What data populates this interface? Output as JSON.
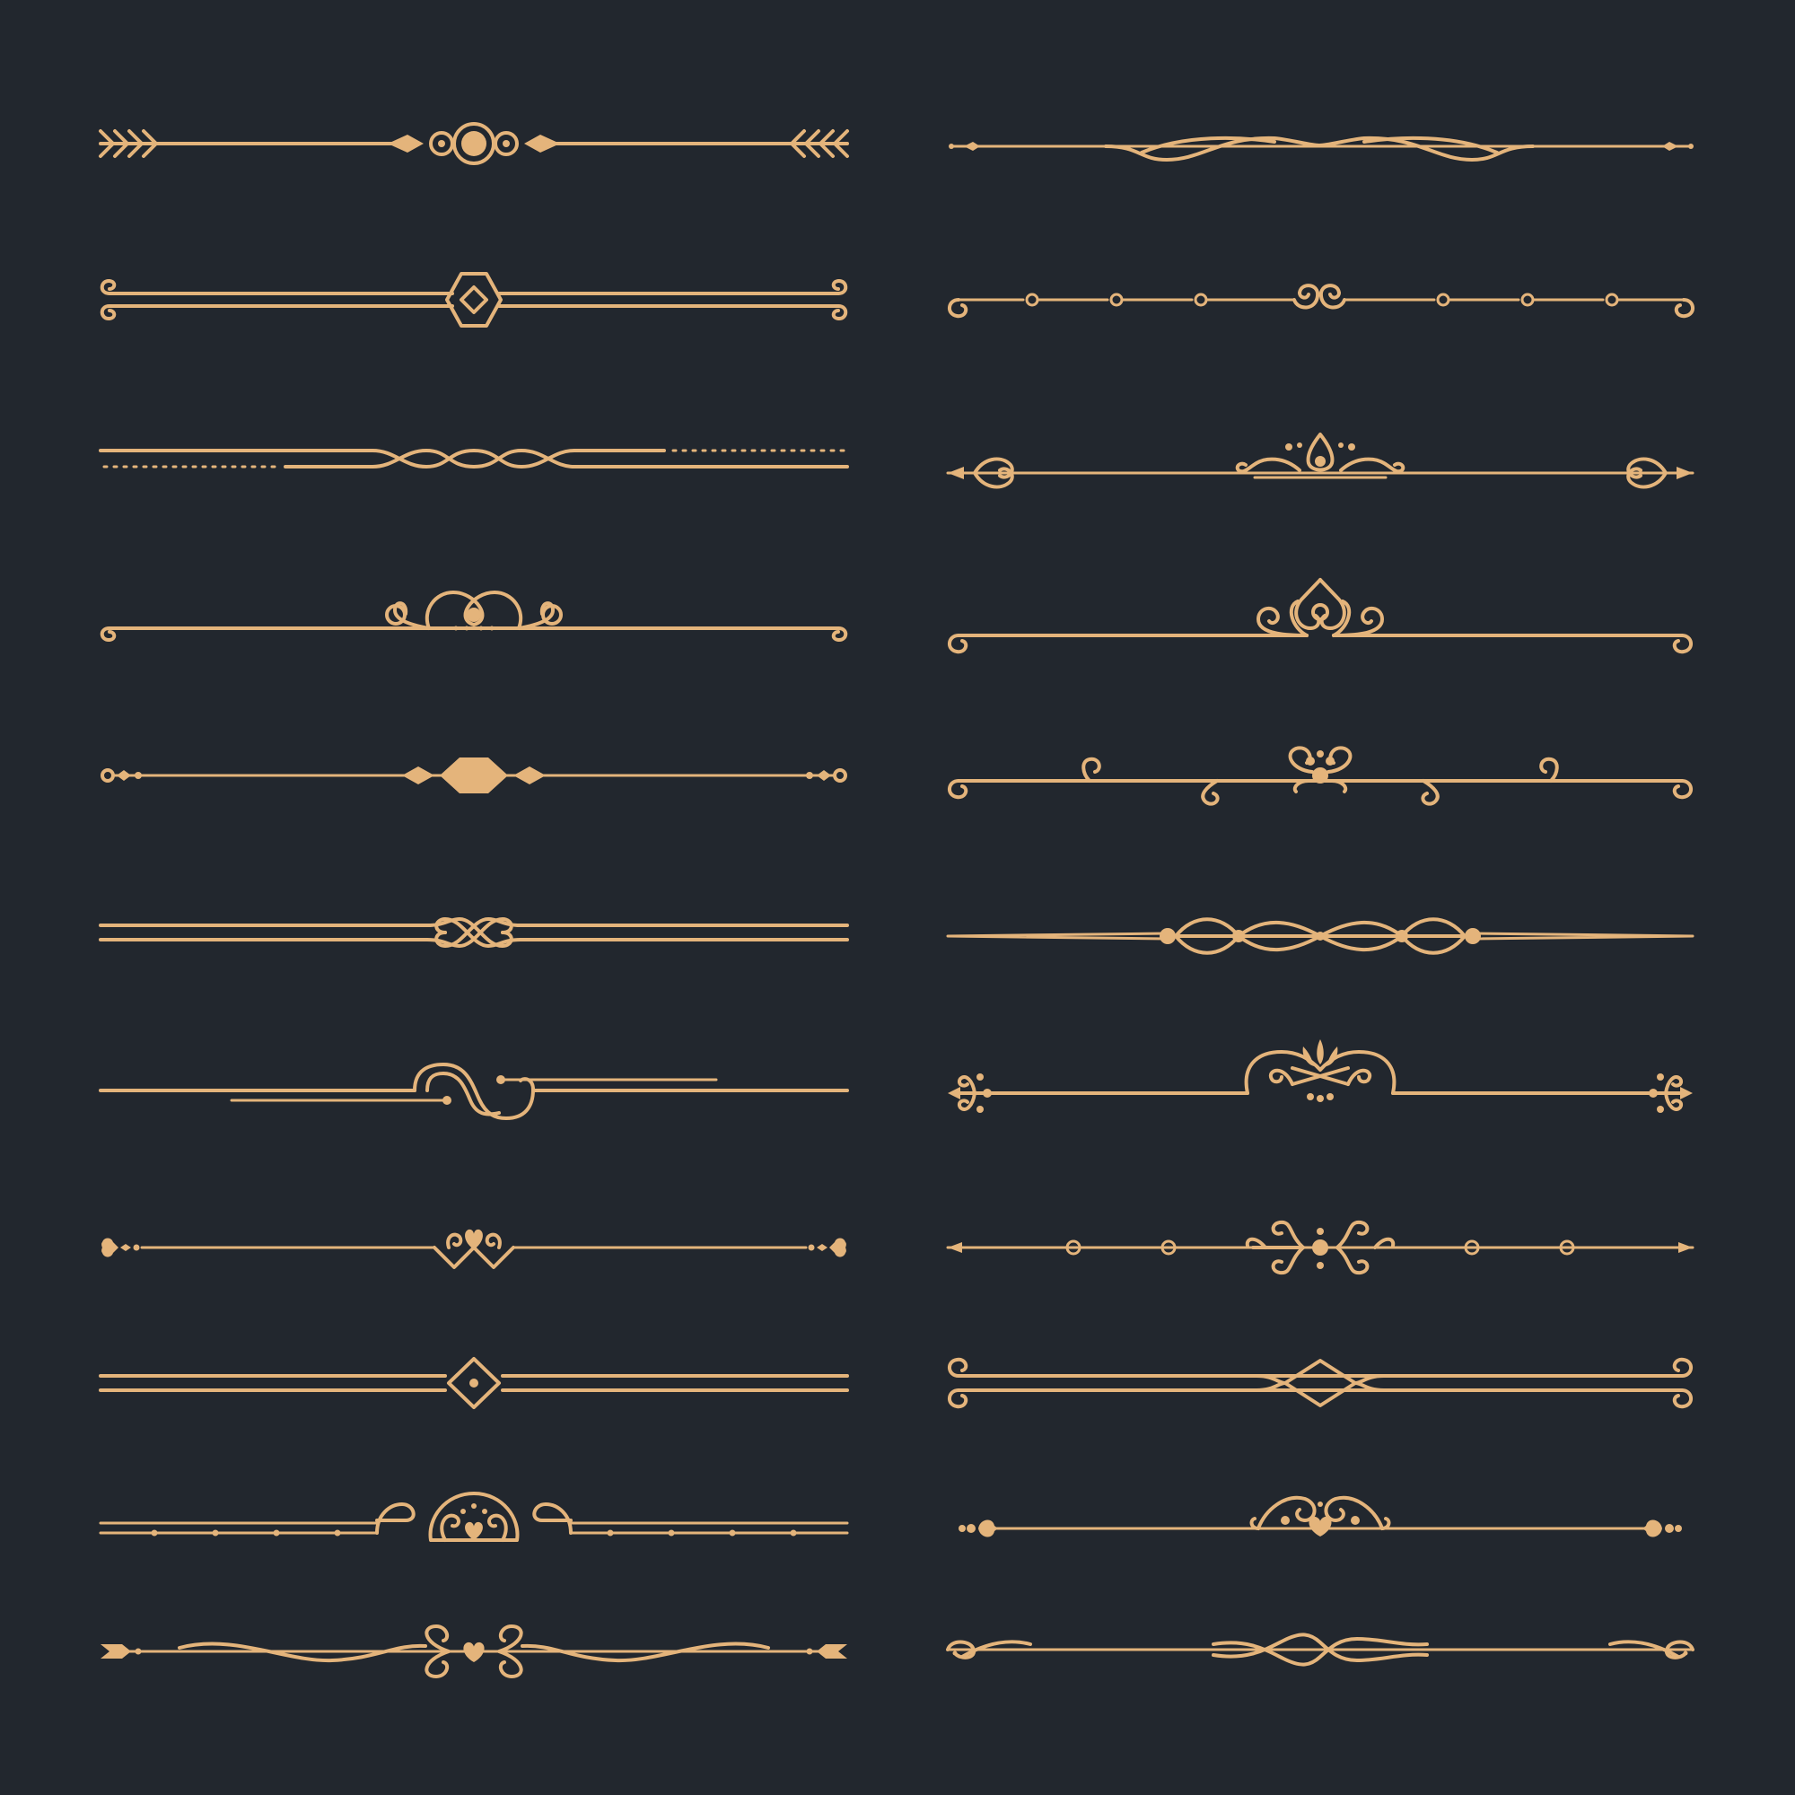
{
  "colors": {
    "background": "#22272e",
    "ornament": "#e4b47b"
  },
  "dividers": [
    {
      "column": "left",
      "style": "arrow-fletching-circle-medallion"
    },
    {
      "column": "left",
      "style": "scroll-ends-diamond-double-rule"
    },
    {
      "column": "left",
      "style": "dotted-rules-braided-center"
    },
    {
      "column": "left",
      "style": "rule-with-scroll-crown"
    },
    {
      "column": "left",
      "style": "lozenge-center-bead-ends"
    },
    {
      "column": "left",
      "style": "double-rule-knot"
    },
    {
      "column": "left",
      "style": "offset-rules-loop"
    },
    {
      "column": "left",
      "style": "heart-chevron-center"
    },
    {
      "column": "left",
      "style": "double-rule-framed-diamond"
    },
    {
      "column": "left",
      "style": "dotted-rule-scroll-crest"
    },
    {
      "column": "left",
      "style": "wave-rule-heart-scrolls"
    },
    {
      "column": "right",
      "style": "pinned-rule-swash"
    },
    {
      "column": "right",
      "style": "rule-beads-spiral-center"
    },
    {
      "column": "right",
      "style": "heart-tips-teardrop-crown"
    },
    {
      "column": "right",
      "style": "rule-trefoil-arch"
    },
    {
      "column": "right",
      "style": "rule-curls-flower"
    },
    {
      "column": "right",
      "style": "tapered-rule-linked-loops"
    },
    {
      "column": "right",
      "style": "fleur-ends-arched-crest"
    },
    {
      "column": "right",
      "style": "bead-rule-spiral-cross"
    },
    {
      "column": "right",
      "style": "scroll-ends-double-rule-diamond"
    },
    {
      "column": "right",
      "style": "heart-ends-scroll-heart"
    },
    {
      "column": "right",
      "style": "flowing-swash-rule"
    }
  ]
}
